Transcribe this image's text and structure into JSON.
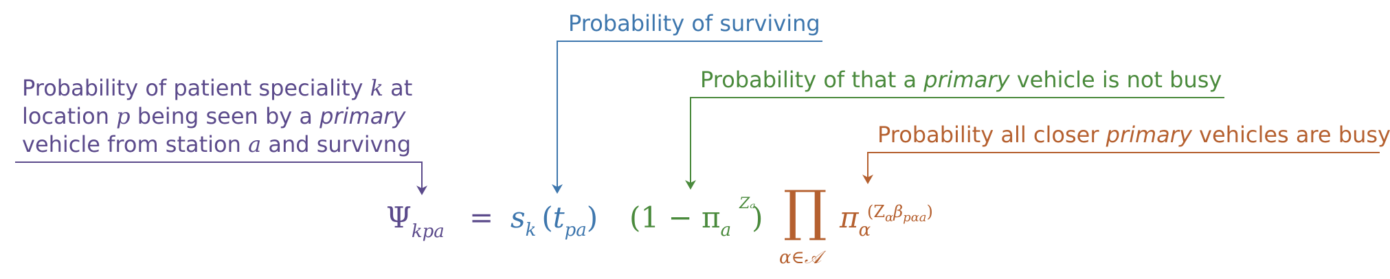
{
  "annotations": {
    "survival": {
      "text": "Probability of surviving",
      "color": "#3d76ad"
    },
    "not_busy": {
      "before": "Probability of that a ",
      "emph": "primary",
      "after": " vehicle is not busy",
      "color": "#4a8a3c"
    },
    "closer_busy": {
      "before": "Probability all closer ",
      "emph": "primary",
      "after": " vehicles are busy",
      "color": "#b5602f"
    },
    "psi": {
      "line1_a": "Probability of patient speciality ",
      "line1_var": "k",
      "line1_b": " at",
      "line2_a": "location ",
      "line2_var": "p",
      "line2_b": " being seen by a ",
      "line2_emph": "primary",
      "line3_a": "vehicle from station ",
      "line3_var": "a",
      "line3_b": " and survivng",
      "color": "#5b4a8b"
    }
  },
  "equation": {
    "lhs": "Ψ",
    "lhs_sub": "kpa",
    "equals": "=",
    "s": "s",
    "s_sub": "k",
    "t_open": "(",
    "t": "t",
    "t_sub": "pa",
    "t_close": ")",
    "one_minus": "(1 − π",
    "pi_sub": "a",
    "pi_sup": "Zₐ",
    "close": ")",
    "prod": "∏",
    "prod_sub": "α∈𝒜",
    "pi2": "π",
    "pi2_sub": "α",
    "pi2_sup": "(Z",
    "pi2_sup_rest": "α",
    "pi2_sup_beta": "β",
    "pi2_sup_beta_sub": "pαa",
    "pi2_sup_close": ")"
  }
}
